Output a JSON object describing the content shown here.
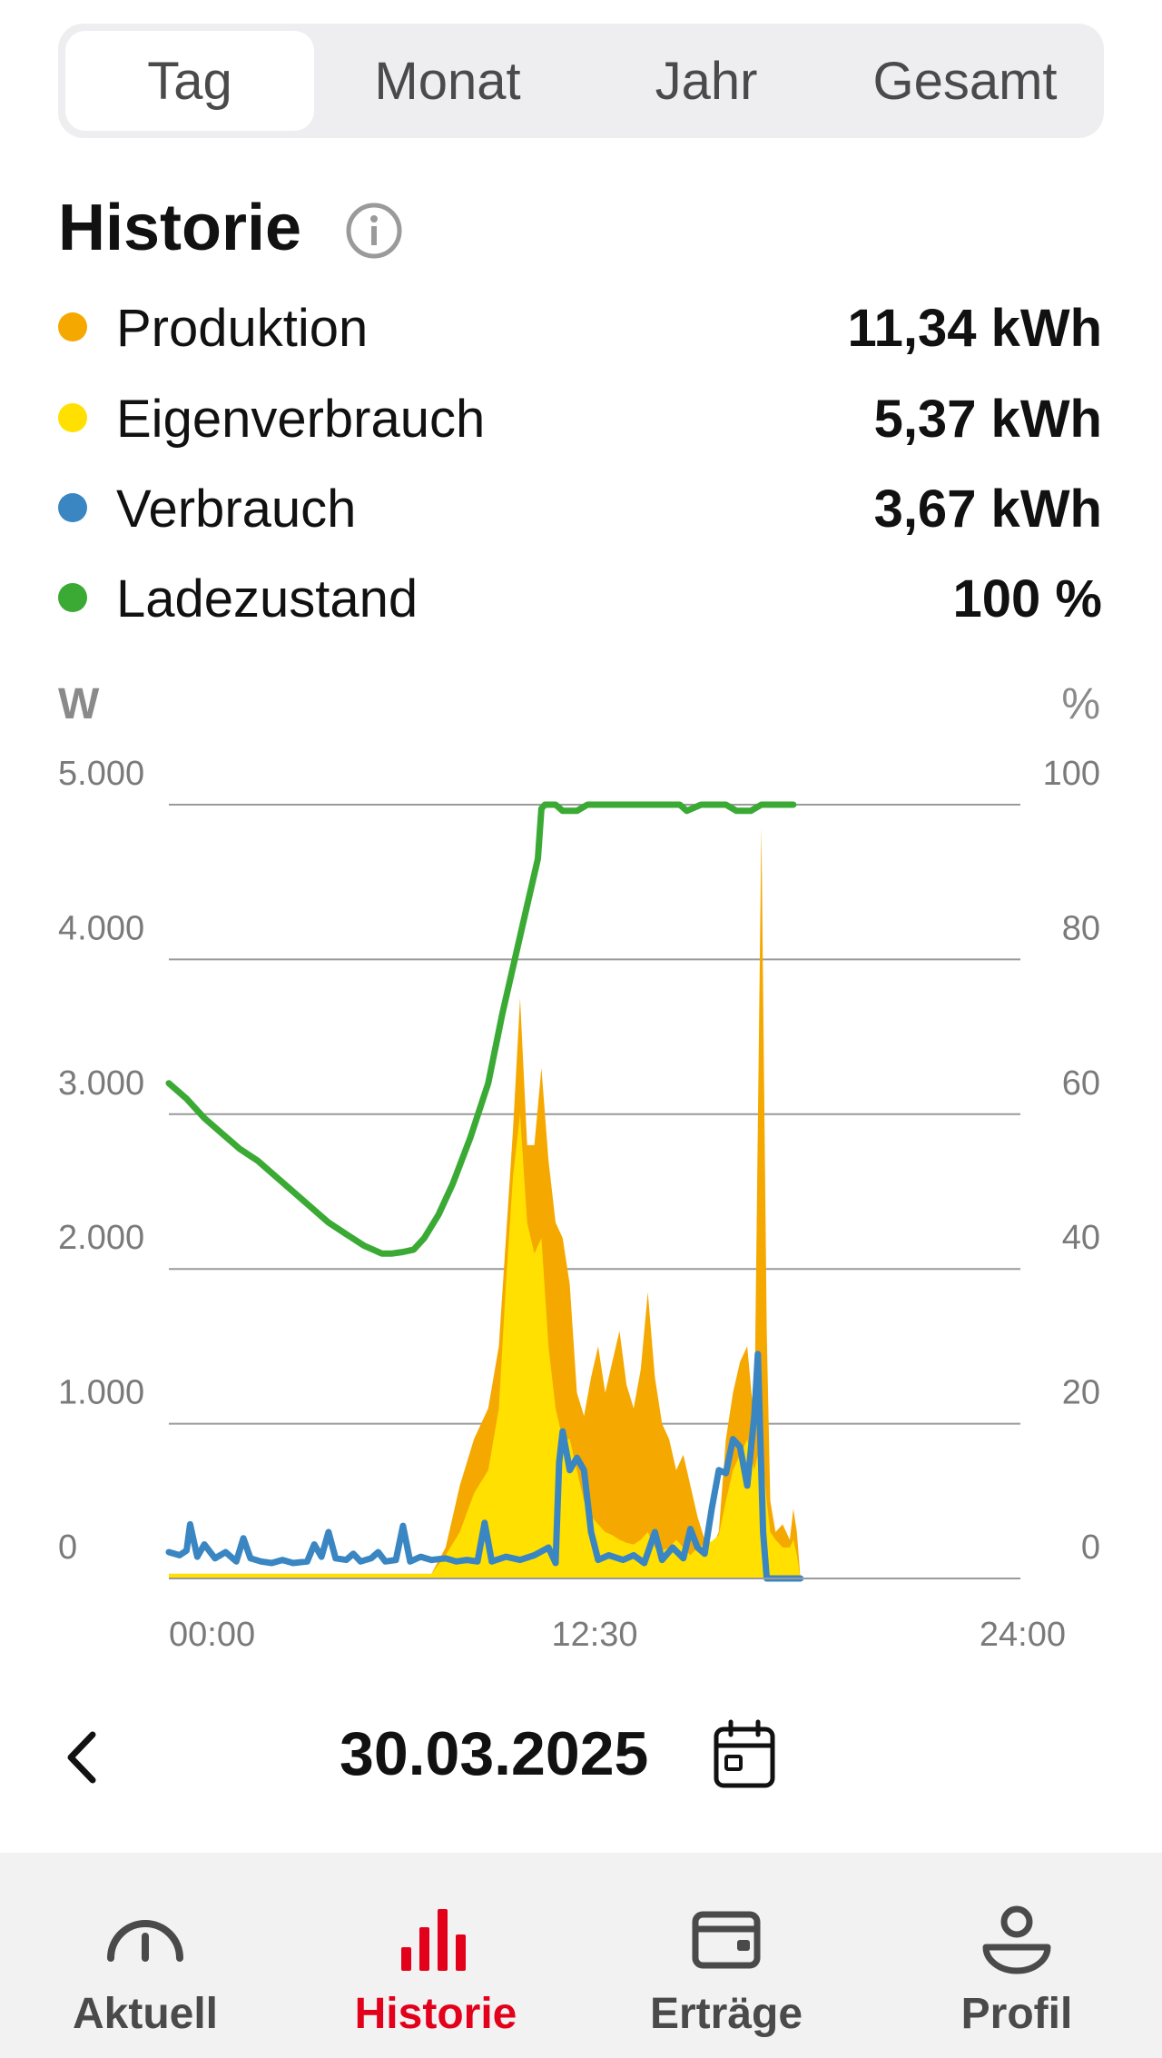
{
  "tabs": [
    {
      "label": "Tag",
      "active": true
    },
    {
      "label": "Monat",
      "active": false
    },
    {
      "label": "Jahr",
      "active": false
    },
    {
      "label": "Gesamt",
      "active": false
    }
  ],
  "section_title": "Historie",
  "legend": [
    {
      "label": "Produktion",
      "value": "11,34 kWh",
      "color": "#f5a800"
    },
    {
      "label": "Eigenverbrauch",
      "value": "5,37 kWh",
      "color": "#ffe000"
    },
    {
      "label": "Verbrauch",
      "value": "3,67 kWh",
      "color": "#3a86c2"
    },
    {
      "label": "Ladezustand",
      "value": "100 %",
      "color": "#3aaa35"
    }
  ],
  "chart_data": {
    "type": "area",
    "y_left_unit": "W",
    "y_right_unit": "%",
    "y_left_ticks": [
      "5.000",
      "4.000",
      "3.000",
      "2.000",
      "1.000",
      "0"
    ],
    "y_right_ticks": [
      "100",
      "80",
      "60",
      "40",
      "20",
      "0"
    ],
    "ylim_left": [
      0,
      5000
    ],
    "ylim_right": [
      0,
      100
    ],
    "x_ticks": [
      "00:00",
      "12:30",
      "24:00"
    ],
    "xlim_hours": [
      0,
      24
    ],
    "grid": true,
    "series": [
      {
        "name": "Produktion",
        "kind": "area",
        "axis": "left",
        "color": "#f5a800",
        "points": [
          [
            0,
            30
          ],
          [
            7.4,
            30
          ],
          [
            7.8,
            200
          ],
          [
            8.2,
            600
          ],
          [
            8.6,
            900
          ],
          [
            9.0,
            1100
          ],
          [
            9.3,
            1500
          ],
          [
            9.5,
            2200
          ],
          [
            9.7,
            2900
          ],
          [
            9.9,
            3750
          ],
          [
            10.1,
            2800
          ],
          [
            10.3,
            2800
          ],
          [
            10.5,
            3300
          ],
          [
            10.7,
            2700
          ],
          [
            10.9,
            2300
          ],
          [
            11.1,
            2200
          ],
          [
            11.3,
            1900
          ],
          [
            11.5,
            1200
          ],
          [
            11.7,
            1050
          ],
          [
            11.9,
            1300
          ],
          [
            12.1,
            1500
          ],
          [
            12.3,
            1200
          ],
          [
            12.5,
            1400
          ],
          [
            12.7,
            1600
          ],
          [
            12.9,
            1250
          ],
          [
            13.1,
            1100
          ],
          [
            13.3,
            1350
          ],
          [
            13.5,
            1850
          ],
          [
            13.7,
            1300
          ],
          [
            13.9,
            1000
          ],
          [
            14.1,
            900
          ],
          [
            14.3,
            700
          ],
          [
            14.5,
            800
          ],
          [
            14.7,
            600
          ],
          [
            14.9,
            400
          ],
          [
            15.1,
            250
          ],
          [
            15.3,
            200
          ],
          [
            15.5,
            300
          ],
          [
            15.7,
            900
          ],
          [
            15.9,
            1200
          ],
          [
            16.1,
            1400
          ],
          [
            16.3,
            1500
          ],
          [
            16.5,
            1000
          ],
          [
            16.7,
            4850
          ],
          [
            16.85,
            1600
          ],
          [
            16.95,
            500
          ],
          [
            17.1,
            300
          ],
          [
            17.3,
            350
          ],
          [
            17.5,
            250
          ],
          [
            17.6,
            450
          ],
          [
            17.7,
            300
          ],
          [
            17.8,
            0
          ]
        ]
      },
      {
        "name": "Eigenverbrauch",
        "kind": "area",
        "axis": "left",
        "color": "#ffe000",
        "points": [
          [
            0,
            30
          ],
          [
            7.4,
            30
          ],
          [
            7.8,
            150
          ],
          [
            8.2,
            300
          ],
          [
            8.6,
            550
          ],
          [
            9.0,
            700
          ],
          [
            9.3,
            1100
          ],
          [
            9.5,
            1900
          ],
          [
            9.7,
            2600
          ],
          [
            9.9,
            3000
          ],
          [
            10.1,
            2300
          ],
          [
            10.3,
            2100
          ],
          [
            10.5,
            2200
          ],
          [
            10.7,
            1500
          ],
          [
            10.9,
            1100
          ],
          [
            11.1,
            900
          ],
          [
            11.3,
            900
          ],
          [
            11.5,
            700
          ],
          [
            11.7,
            500
          ],
          [
            11.9,
            400
          ],
          [
            12.1,
            350
          ],
          [
            12.3,
            300
          ],
          [
            12.5,
            280
          ],
          [
            12.7,
            250
          ],
          [
            12.9,
            230
          ],
          [
            13.1,
            220
          ],
          [
            13.3,
            250
          ],
          [
            13.5,
            300
          ],
          [
            13.7,
            200
          ],
          [
            13.9,
            180
          ],
          [
            14.1,
            200
          ],
          [
            14.3,
            250
          ],
          [
            14.5,
            200
          ],
          [
            14.7,
            150
          ],
          [
            14.9,
            200
          ],
          [
            15.1,
            220
          ],
          [
            15.3,
            240
          ],
          [
            15.5,
            280
          ],
          [
            15.7,
            500
          ],
          [
            15.9,
            700
          ],
          [
            16.1,
            800
          ],
          [
            16.3,
            900
          ],
          [
            16.5,
            700
          ],
          [
            16.7,
            900
          ],
          [
            16.85,
            500
          ],
          [
            16.95,
            300
          ],
          [
            17.1,
            250
          ],
          [
            17.3,
            200
          ],
          [
            17.5,
            200
          ],
          [
            17.6,
            250
          ],
          [
            17.7,
            150
          ],
          [
            17.8,
            0
          ]
        ]
      },
      {
        "name": "Verbrauch",
        "kind": "line",
        "axis": "left",
        "color": "#3a86c2",
        "points": [
          [
            0,
            170
          ],
          [
            0.3,
            150
          ],
          [
            0.5,
            180
          ],
          [
            0.6,
            350
          ],
          [
            0.8,
            140
          ],
          [
            1.0,
            220
          ],
          [
            1.3,
            130
          ],
          [
            1.6,
            170
          ],
          [
            1.9,
            110
          ],
          [
            2.1,
            260
          ],
          [
            2.3,
            130
          ],
          [
            2.6,
            110
          ],
          [
            2.9,
            100
          ],
          [
            3.2,
            120
          ],
          [
            3.5,
            100
          ],
          [
            3.9,
            110
          ],
          [
            4.1,
            220
          ],
          [
            4.3,
            140
          ],
          [
            4.5,
            300
          ],
          [
            4.7,
            130
          ],
          [
            5.0,
            120
          ],
          [
            5.2,
            160
          ],
          [
            5.4,
            110
          ],
          [
            5.7,
            130
          ],
          [
            5.9,
            170
          ],
          [
            6.1,
            110
          ],
          [
            6.4,
            120
          ],
          [
            6.6,
            340
          ],
          [
            6.8,
            110
          ],
          [
            7.1,
            140
          ],
          [
            7.4,
            120
          ],
          [
            7.8,
            130
          ],
          [
            8.1,
            110
          ],
          [
            8.4,
            120
          ],
          [
            8.7,
            110
          ],
          [
            8.9,
            360
          ],
          [
            9.1,
            110
          ],
          [
            9.5,
            140
          ],
          [
            9.9,
            120
          ],
          [
            10.3,
            150
          ],
          [
            10.7,
            200
          ],
          [
            10.9,
            100
          ],
          [
            11.0,
            750
          ],
          [
            11.1,
            950
          ],
          [
            11.3,
            700
          ],
          [
            11.5,
            780
          ],
          [
            11.7,
            700
          ],
          [
            11.9,
            300
          ],
          [
            12.1,
            120
          ],
          [
            12.4,
            150
          ],
          [
            12.8,
            120
          ],
          [
            13.1,
            150
          ],
          [
            13.4,
            100
          ],
          [
            13.7,
            300
          ],
          [
            13.9,
            120
          ],
          [
            14.2,
            200
          ],
          [
            14.5,
            130
          ],
          [
            14.7,
            320
          ],
          [
            14.9,
            200
          ],
          [
            15.1,
            160
          ],
          [
            15.3,
            450
          ],
          [
            15.5,
            700
          ],
          [
            15.7,
            680
          ],
          [
            15.9,
            900
          ],
          [
            16.1,
            850
          ],
          [
            16.3,
            600
          ],
          [
            16.5,
            1050
          ],
          [
            16.6,
            1450
          ],
          [
            16.75,
            300
          ],
          [
            16.85,
            0
          ],
          [
            17.0,
            0
          ],
          [
            17.6,
            0
          ],
          [
            17.8,
            0
          ]
        ]
      },
      {
        "name": "Ladezustand",
        "kind": "line",
        "axis": "right",
        "color": "#3aaa35",
        "points": [
          [
            0,
            64
          ],
          [
            0.5,
            62
          ],
          [
            1,
            59.5
          ],
          [
            1.5,
            57.5
          ],
          [
            2,
            55.5
          ],
          [
            2.5,
            54
          ],
          [
            3,
            52
          ],
          [
            3.5,
            50
          ],
          [
            4,
            48
          ],
          [
            4.5,
            46
          ],
          [
            5,
            44.5
          ],
          [
            5.5,
            43
          ],
          [
            6,
            42
          ],
          [
            6.3,
            42
          ],
          [
            6.6,
            42.2
          ],
          [
            6.9,
            42.5
          ],
          [
            7.2,
            44
          ],
          [
            7.6,
            47
          ],
          [
            8,
            51
          ],
          [
            8.5,
            57
          ],
          [
            9,
            64
          ],
          [
            9.4,
            73
          ],
          [
            9.8,
            81
          ],
          [
            10.1,
            87
          ],
          [
            10.4,
            93
          ],
          [
            10.5,
            99.5
          ],
          [
            10.6,
            100
          ],
          [
            10.9,
            100
          ],
          [
            11.1,
            99.2
          ],
          [
            11.5,
            99.2
          ],
          [
            11.8,
            100
          ],
          [
            14.4,
            100
          ],
          [
            14.6,
            99.2
          ],
          [
            15.0,
            100
          ],
          [
            15.7,
            100
          ],
          [
            16.0,
            99.2
          ],
          [
            16.4,
            99.2
          ],
          [
            16.7,
            100
          ],
          [
            17.6,
            100
          ]
        ]
      }
    ]
  },
  "date": "30.03.2025",
  "nav": [
    {
      "label": "Aktuell",
      "icon": "gauge-icon",
      "active": false
    },
    {
      "label": "Historie",
      "icon": "bar-chart-icon",
      "active": true
    },
    {
      "label": "Erträge",
      "icon": "wallet-icon",
      "active": false
    },
    {
      "label": "Profil",
      "icon": "user-icon",
      "active": false
    }
  ],
  "colors": {
    "accent": "#e3001b",
    "nav_bg": "#f2f2f3",
    "tab_bg": "#eeeef0"
  }
}
